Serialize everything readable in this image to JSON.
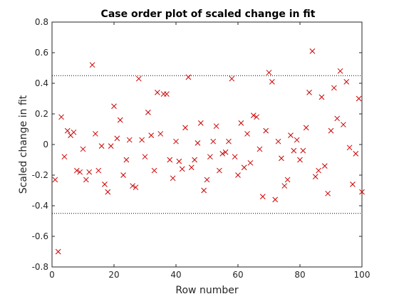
{
  "chart_data": {
    "type": "scatter",
    "title": "Case order plot of scaled change in fit",
    "xlabel": "Row number",
    "ylabel": "Scaled change in fit",
    "xlim": [
      0,
      100
    ],
    "ylim": [
      -0.8,
      0.8
    ],
    "xticks": [
      "0",
      "20",
      "40",
      "60",
      "80",
      "100"
    ],
    "yticks": [
      "-0.8",
      "-0.6",
      "-0.4",
      "-0.2",
      "0",
      "0.2",
      "0.4",
      "0.6",
      "0.8"
    ],
    "marker": "x",
    "marker_color": "#cc0000",
    "reference_lines": [
      0.45,
      -0.45
    ],
    "grid": false,
    "series": [
      {
        "x": [
          1,
          2,
          3,
          4,
          5,
          6,
          7,
          8,
          9,
          10,
          11,
          12,
          13,
          14,
          15,
          16,
          17,
          18,
          19,
          20,
          21,
          22,
          23,
          24,
          25,
          26,
          27,
          28,
          29,
          30,
          31,
          32,
          33,
          34,
          35,
          36,
          37,
          38,
          39,
          40,
          41,
          42,
          43,
          44,
          45,
          46,
          47,
          48,
          49,
          50,
          51,
          52,
          53,
          54,
          55,
          56,
          57,
          58,
          59,
          60,
          61,
          62,
          63,
          64,
          65,
          66,
          67,
          68,
          69,
          70,
          71,
          72,
          73,
          74,
          75,
          76,
          77,
          78,
          79,
          80,
          81,
          82,
          83,
          84,
          85,
          86,
          87,
          88,
          89,
          90,
          91,
          92,
          93,
          94,
          95,
          96,
          97,
          98,
          99,
          100
        ],
        "y": [
          -0.23,
          -0.7,
          0.18,
          -0.08,
          0.09,
          0.06,
          0.08,
          -0.17,
          -0.18,
          -0.03,
          -0.23,
          -0.18,
          0.52,
          0.07,
          -0.17,
          -0.01,
          -0.26,
          -0.31,
          -0.01,
          0.25,
          0.04,
          0.16,
          -0.2,
          -0.1,
          0.03,
          -0.27,
          -0.28,
          0.43,
          0.03,
          -0.08,
          0.21,
          0.06,
          -0.17,
          0.34,
          0.07,
          0.33,
          0.33,
          -0.1,
          -0.22,
          0.02,
          -0.11,
          -0.16,
          0.11,
          0.44,
          -0.15,
          -0.1,
          0.01,
          0.14,
          -0.3,
          -0.23,
          -0.08,
          0.02,
          0.12,
          -0.17,
          -0.06,
          -0.05,
          0.02,
          0.43,
          -0.08,
          -0.2,
          0.14,
          -0.15,
          0.07,
          -0.12,
          0.19,
          0.18,
          -0.03,
          -0.34,
          0.09,
          0.47,
          0.41,
          -0.36,
          0.02,
          -0.09,
          -0.27,
          -0.23,
          0.06,
          -0.04,
          0.03,
          -0.1,
          -0.04,
          0.11,
          0.34,
          0.61,
          -0.21,
          -0.17,
          0.31,
          -0.14,
          -0.32,
          0.09,
          0.37,
          0.17,
          0.48,
          0.13,
          0.41,
          -0.02,
          -0.26,
          -0.06,
          0.3,
          -0.31
        ]
      }
    ]
  }
}
